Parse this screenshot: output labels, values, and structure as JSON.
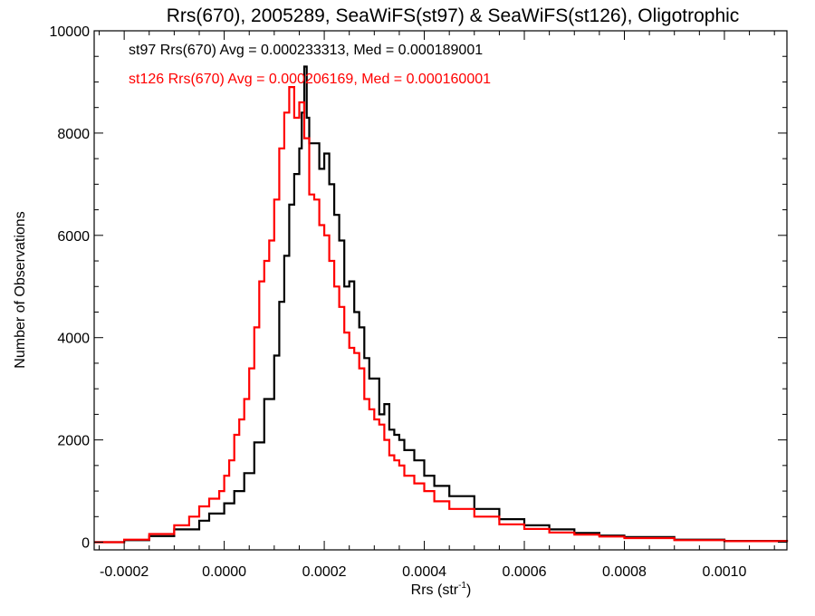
{
  "chart_data": {
    "type": "line",
    "style": "histogram-step",
    "title": "Rrs(670), 2005289, SeaWiFS(st97) & SeaWiFS(st126), Oligotrophic",
    "xlabel": "Rrs (str",
    "xlabel_sup": "-1",
    "xlabel_close": ")",
    "ylabel": "Number of Observations",
    "xlim": [
      -0.00026,
      0.001125
    ],
    "ylim": [
      -150,
      10000
    ],
    "x_ticks": [
      -0.0002,
      0.0,
      0.0002,
      0.0004,
      0.0006,
      0.0008,
      0.001
    ],
    "x_tick_labels": [
      "-0.0002",
      "0.0000",
      "0.0002",
      "0.0004",
      "0.0006",
      "0.0008",
      "0.0010"
    ],
    "y_ticks": [
      0,
      2000,
      4000,
      6000,
      8000,
      10000
    ],
    "y_tick_labels": [
      "0",
      "2000",
      "4000",
      "6000",
      "8000",
      "10000"
    ],
    "grid": false,
    "annotations": [
      {
        "text": "st97 Rrs(670) Avg = 0.000233313, Med = 0.000189001",
        "color": "#000000"
      },
      {
        "text": "st126 Rrs(670) Avg = 0.000206169, Med = 0.000160001",
        "color": "#ff0000"
      }
    ],
    "series": [
      {
        "color": "#000000",
        "x": [
          -0.00026,
          -0.0002,
          -0.00015,
          -0.0001,
          -5e-05,
          -3e-05,
          0.0,
          2e-05,
          4e-05,
          6e-05,
          8e-05,
          0.0001,
          0.00011,
          0.00012,
          0.00013,
          0.00014,
          0.00015,
          0.000155,
          0.00016,
          0.000165,
          0.00017,
          0.00018,
          0.00019,
          0.0002,
          0.00021,
          0.00022,
          0.00023,
          0.00024,
          0.00025,
          0.00026,
          0.00027,
          0.00028,
          0.00029,
          0.0003,
          0.00031,
          0.00032,
          0.00033,
          0.00034,
          0.00035,
          0.00036,
          0.00038,
          0.0004,
          0.00042,
          0.00045,
          0.0005,
          0.00055,
          0.0006,
          0.00065,
          0.0007,
          0.00075,
          0.0008,
          0.0009,
          0.001,
          0.001125
        ],
        "y": [
          0,
          40,
          120,
          250,
          420,
          560,
          760,
          1000,
          1350,
          1950,
          2800,
          3650,
          4700,
          5600,
          6600,
          7200,
          7700,
          8400,
          9300,
          8300,
          7800,
          7800,
          7300,
          7600,
          7000,
          6400,
          5900,
          5000,
          5100,
          4500,
          4200,
          3600,
          3200,
          3200,
          2500,
          2700,
          2200,
          2100,
          2000,
          1800,
          1600,
          1300,
          1100,
          900,
          650,
          450,
          330,
          250,
          180,
          130,
          100,
          50,
          25,
          0
        ]
      },
      {
        "color": "#ff0000",
        "x": [
          -0.00026,
          -0.0002,
          -0.00015,
          -0.0001,
          -7e-05,
          -5e-05,
          -3e-05,
          -1e-05,
          0.0,
          1e-05,
          2e-05,
          3e-05,
          4e-05,
          5e-05,
          6e-05,
          7e-05,
          8e-05,
          9e-05,
          0.0001,
          0.00011,
          0.00012,
          0.00013,
          0.00014,
          0.00015,
          0.00016,
          0.00017,
          0.00018,
          0.00019,
          0.0002,
          0.00021,
          0.00022,
          0.00023,
          0.00024,
          0.00025,
          0.00026,
          0.00027,
          0.00028,
          0.00029,
          0.0003,
          0.00031,
          0.00032,
          0.00033,
          0.00034,
          0.00035,
          0.00036,
          0.00038,
          0.0004,
          0.00042,
          0.00045,
          0.0005,
          0.00055,
          0.0006,
          0.00065,
          0.0007,
          0.00075,
          0.0008,
          0.0009,
          0.001,
          0.001125
        ],
        "y": [
          0,
          50,
          160,
          330,
          500,
          700,
          850,
          1000,
          1300,
          1600,
          2100,
          2400,
          2800,
          3400,
          4200,
          5100,
          5500,
          5900,
          6700,
          7700,
          8400,
          8900,
          8300,
          8600,
          7900,
          6800,
          6700,
          6200,
          6000,
          5500,
          5000,
          4600,
          4100,
          3800,
          3700,
          3400,
          2800,
          2600,
          2400,
          2300,
          2000,
          1700,
          1600,
          1500,
          1300,
          1150,
          1000,
          800,
          650,
          500,
          350,
          260,
          190,
          150,
          110,
          80,
          40,
          20,
          0
        ]
      }
    ]
  }
}
